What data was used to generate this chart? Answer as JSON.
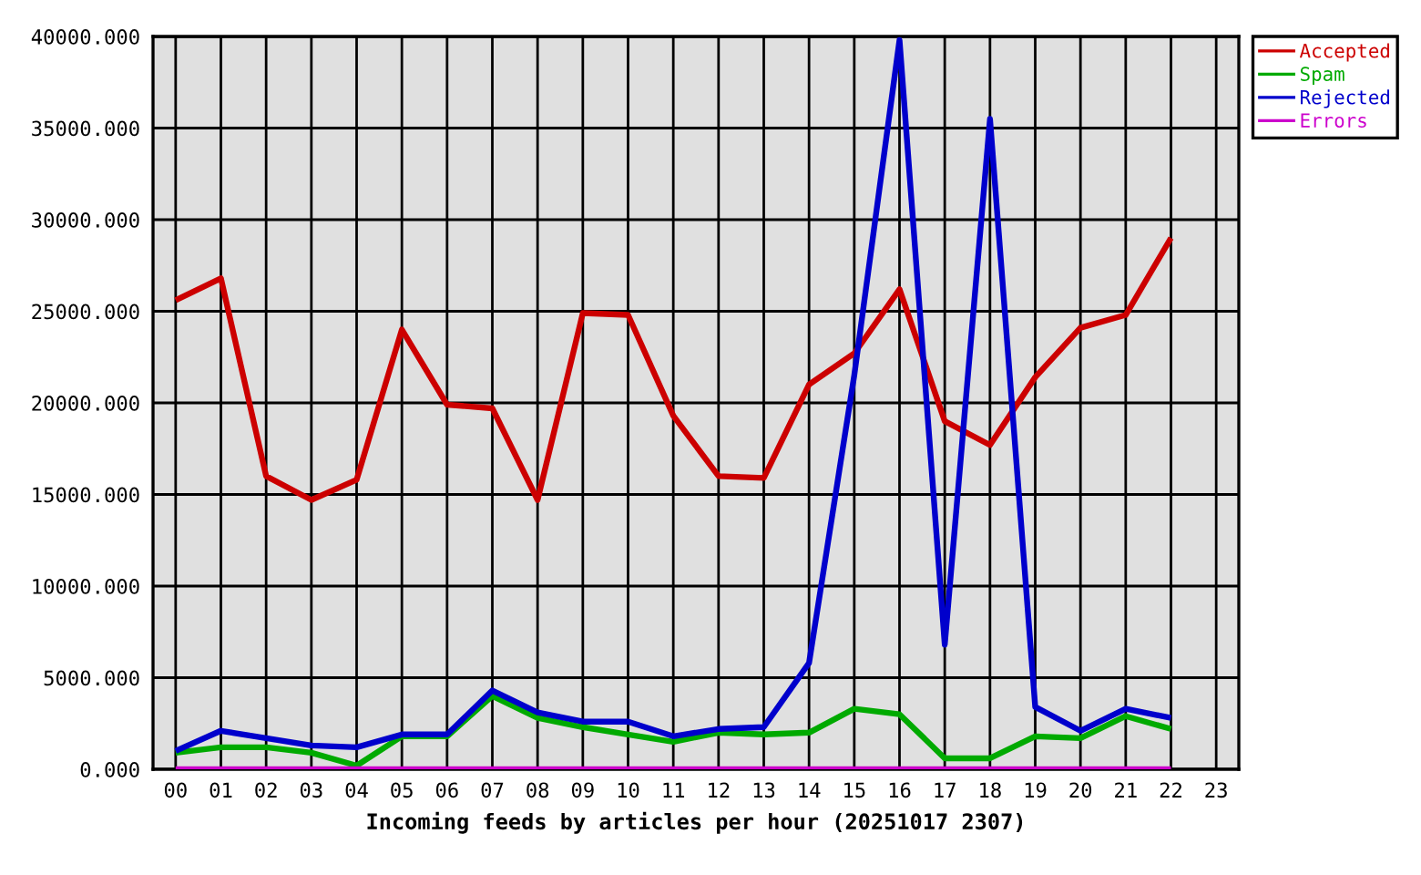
{
  "chart_data": {
    "type": "line",
    "xlabel": "Incoming feeds by articles per hour (20251017 2307)",
    "categories": [
      "00",
      "01",
      "02",
      "03",
      "04",
      "05",
      "06",
      "07",
      "08",
      "09",
      "10",
      "11",
      "12",
      "13",
      "14",
      "15",
      "16",
      "17",
      "18",
      "19",
      "20",
      "21",
      "22",
      "23"
    ],
    "series": [
      {
        "name": "Accepted",
        "color": "#cc0000",
        "values": [
          25600,
          26800,
          16000,
          14700,
          15800,
          24000,
          19900,
          19700,
          14700,
          24900,
          24800,
          19300,
          16000,
          15900,
          21000,
          22700,
          26200,
          19000,
          17700,
          21400,
          24100,
          24800,
          29000,
          null
        ]
      },
      {
        "name": "Spam",
        "color": "#00aa00",
        "values": [
          900,
          1200,
          1200,
          900,
          200,
          1800,
          1800,
          4000,
          2800,
          2300,
          1900,
          1500,
          2000,
          1900,
          2000,
          3300,
          3000,
          600,
          600,
          1800,
          1700,
          2900,
          2200,
          null
        ]
      },
      {
        "name": "Rejected",
        "color": "#0000cc",
        "values": [
          1000,
          2100,
          1700,
          1300,
          1200,
          1900,
          1900,
          4300,
          3100,
          2600,
          2600,
          1800,
          2200,
          2300,
          5800,
          21500,
          39800,
          6800,
          35500,
          3400,
          2100,
          3300,
          2800,
          null
        ]
      },
      {
        "name": "Errors",
        "color": "#cc00cc",
        "values": [
          0,
          0,
          0,
          0,
          0,
          0,
          0,
          0,
          0,
          0,
          0,
          0,
          0,
          0,
          0,
          0,
          0,
          0,
          0,
          0,
          0,
          0,
          0,
          null
        ]
      }
    ],
    "ylim": [
      0,
      40000
    ],
    "yticks": [
      {
        "value": 0,
        "label": "0.000"
      },
      {
        "value": 5000,
        "label": "5000.000"
      },
      {
        "value": 10000,
        "label": "10000.000"
      },
      {
        "value": 15000,
        "label": "15000.000"
      },
      {
        "value": 20000,
        "label": "20000.000"
      },
      {
        "value": 25000,
        "label": "25000.000"
      },
      {
        "value": 30000,
        "label": "30000.000"
      },
      {
        "value": 35000,
        "label": "35000.000"
      },
      {
        "value": 40000,
        "label": "40000.000"
      }
    ],
    "grid": true,
    "legend": "top right",
    "line_style": "solid"
  }
}
